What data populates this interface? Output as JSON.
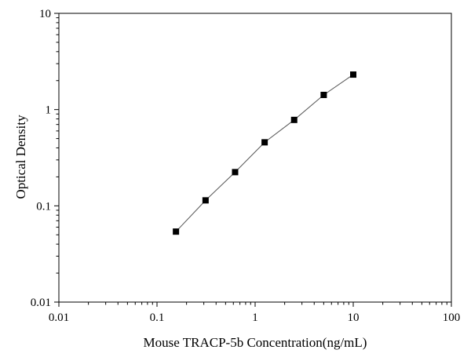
{
  "chart_data": {
    "type": "scatter",
    "xlabel": "Mouse TRACP-5b Concentration(ng/mL)",
    "ylabel": "Optical Density",
    "x_scale": "log",
    "y_scale": "log",
    "xlim": [
      0.01,
      100
    ],
    "ylim": [
      0.01,
      10
    ],
    "x_ticks": [
      0.01,
      0.1,
      1,
      10,
      100
    ],
    "y_ticks": [
      0.01,
      0.1,
      1,
      10
    ],
    "x_tick_labels": [
      "0.01",
      "0.1",
      "1",
      "10",
      "100"
    ],
    "y_tick_labels": [
      "0.01",
      "0.1",
      "1",
      "10"
    ],
    "grid": false,
    "series": [
      {
        "x": [
          0.156,
          0.3125,
          0.625,
          1.25,
          2.5,
          5,
          10
        ],
        "y": [
          0.054,
          0.114,
          0.224,
          0.457,
          0.781,
          1.42,
          2.31
        ],
        "marker": "square",
        "connected": true,
        "color": "#000000"
      }
    ]
  }
}
